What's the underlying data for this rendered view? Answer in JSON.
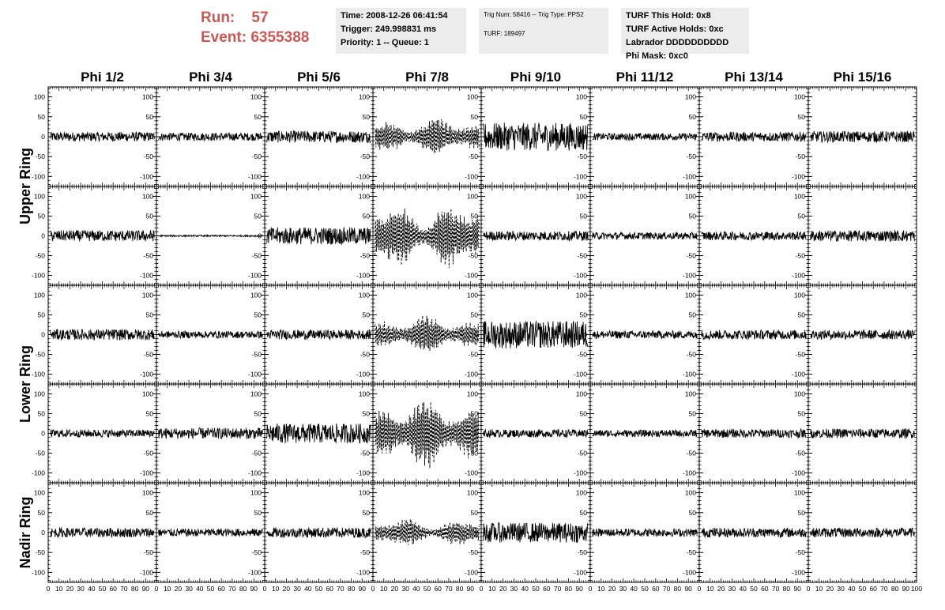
{
  "header": {
    "run_label": "Run:",
    "run_value": "57",
    "event_label": "Event:",
    "event_value": "6355388"
  },
  "info_box_1": {
    "time": "Time: 2008-12-26 06:41:54",
    "trigger": "Trigger: 249.998831 ms",
    "priority": "Priority: 1 -- Queue: 1"
  },
  "info_box_2": {
    "trig": "Trig Num: 58416 -- Trig Type: PPS2",
    "turf": "TURF: 189497"
  },
  "info_box_3": {
    "hold": "TURF This Hold: 0x8",
    "active": "TURF Active Holds: 0xc",
    "labrador": "Labrador DDDDDDDDDD",
    "mask": "Phi Mask: 0xc0"
  },
  "colors": {
    "header_text": "#c85a55",
    "info_box_bg": "#ececec",
    "trace": "#000000"
  },
  "chart_data": {
    "type": "line",
    "columns": [
      "Phi 1/2",
      "Phi 3/4",
      "Phi 5/6",
      "Phi 7/8",
      "Phi 9/10",
      "Phi 11/12",
      "Phi 13/14",
      "Phi 15/16"
    ],
    "rows": [
      "Upper Ring",
      "Lower Ring",
      "Nadir Ring"
    ],
    "panel_rows": 5,
    "xlim": [
      0,
      100
    ],
    "ylim": [
      -125,
      125
    ],
    "x_ticks": [
      0,
      10,
      20,
      30,
      40,
      50,
      60,
      70,
      80,
      90,
      100
    ],
    "x_tick_labels": [
      "0",
      "10",
      "20",
      "30",
      "40",
      "50",
      "60",
      "70",
      "80",
      "90",
      "100"
    ],
    "y_ticks": [
      100,
      50,
      0,
      -50,
      -100
    ],
    "y_tick_labels": [
      "100",
      "50",
      "0",
      "-50",
      "-100"
    ],
    "grid": false,
    "dashed_column": "Phi 7/8",
    "panel_amplitudes": [
      [
        12,
        10,
        15,
        40,
        35,
        9,
        12,
        14
      ],
      [
        14,
        2,
        22,
        70,
        12,
        9,
        11,
        14
      ],
      [
        14,
        9,
        12,
        40,
        35,
        10,
        12,
        12
      ],
      [
        10,
        14,
        25,
        75,
        10,
        9,
        11,
        12
      ],
      [
        12,
        10,
        13,
        30,
        25,
        10,
        12,
        12
      ]
    ]
  }
}
